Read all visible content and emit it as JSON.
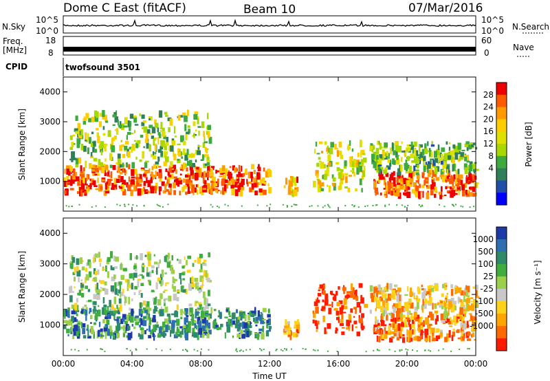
{
  "header": {
    "station": "Dome C East (fitACF)",
    "beam": "Beam 10",
    "date": "07/Mar/2016"
  },
  "top_panels": {
    "nsky_label": "N.Sky",
    "nsky_ticks": [
      "10^5",
      "10^0"
    ],
    "nsearch_label": "N.Search",
    "nsearch_ticks": [
      "10^5",
      "10^0"
    ],
    "freq_label_1": "Freq.",
    "freq_label_2": "[MHz]",
    "freq_ticks": [
      "18",
      "8"
    ],
    "nave_label": "Nave",
    "nave_ticks": [
      "60",
      "0"
    ],
    "cpid_label": "CPID",
    "cpid_value": "twofsound 3501"
  },
  "chart_data": [
    {
      "type": "heatmap",
      "name": "power",
      "ylabel": "Slant Range [km]",
      "yticks": [
        1000,
        2000,
        3000,
        4000
      ],
      "ylim": [
        0,
        4500
      ],
      "xlim": [
        0,
        24
      ],
      "colorbar": {
        "label": "Power [dB]",
        "ticks": [
          "28",
          "24",
          "20",
          "16",
          "12",
          "8",
          "4"
        ],
        "colors": [
          "#ee0000",
          "#ff5a00",
          "#ff9a00",
          "#ffcc00",
          "#e0e000",
          "#a8d800",
          "#3caa3c",
          "#2f7f5a",
          "#1f4fa8",
          "#0000ff"
        ]
      },
      "echo_bands": [
        {
          "t": [
            0.0,
            12.0
          ],
          "r": [
            600,
            1500
          ],
          "level": 0.85
        },
        {
          "t": [
            0.3,
            8.5
          ],
          "r": [
            1500,
            3300
          ],
          "level": 0.45
        },
        {
          "t": [
            12.8,
            13.6
          ],
          "r": [
            600,
            1100
          ],
          "level": 0.7
        },
        {
          "t": [
            14.5,
            17.5
          ],
          "r": [
            700,
            2300
          ],
          "level": 0.55
        },
        {
          "t": [
            18.0,
            24.0
          ],
          "r": [
            500,
            1300
          ],
          "level": 0.85
        },
        {
          "t": [
            17.8,
            24.0
          ],
          "r": [
            1300,
            2300
          ],
          "level": 0.4
        }
      ]
    },
    {
      "type": "heatmap",
      "name": "velocity",
      "ylabel": "Slant Range [km]",
      "yticks": [
        1000,
        2000,
        3000,
        4000
      ],
      "ylim": [
        0,
        4500
      ],
      "xlim": [
        0,
        24
      ],
      "xlabel": "Time UT",
      "xticks": [
        "00:00",
        "04:00",
        "08:00",
        "12:00",
        "16:00",
        "20:00",
        "00:00"
      ],
      "colorbar": {
        "label": "Velocity [m s⁻¹]",
        "ticks": [
          "1000",
          "500",
          "100",
          "25",
          "-25",
          "-100",
          "-500",
          "-1000"
        ],
        "colors": [
          "#1c3aa8",
          "#2d6fb0",
          "#2f8a6a",
          "#3fae3f",
          "#9ad04a",
          "#c8c8c8",
          "#ffd21a",
          "#ffa500",
          "#ff6a00",
          "#ff1a00"
        ]
      },
      "echo_bands": [
        {
          "t": [
            0.0,
            12.0
          ],
          "r": [
            600,
            1500
          ],
          "level": 0.75
        },
        {
          "t": [
            0.3,
            8.5
          ],
          "r": [
            1500,
            3300
          ],
          "level": 0.55
        },
        {
          "t": [
            12.8,
            13.6
          ],
          "r": [
            600,
            1100
          ],
          "level": 0.2
        },
        {
          "t": [
            14.5,
            17.5
          ],
          "r": [
            700,
            2300
          ],
          "level": 0.05
        },
        {
          "t": [
            18.0,
            24.0
          ],
          "r": [
            500,
            1300
          ],
          "level": 0.2
        },
        {
          "t": [
            17.8,
            24.0
          ],
          "r": [
            1300,
            2300
          ],
          "level": 0.35
        }
      ]
    }
  ]
}
